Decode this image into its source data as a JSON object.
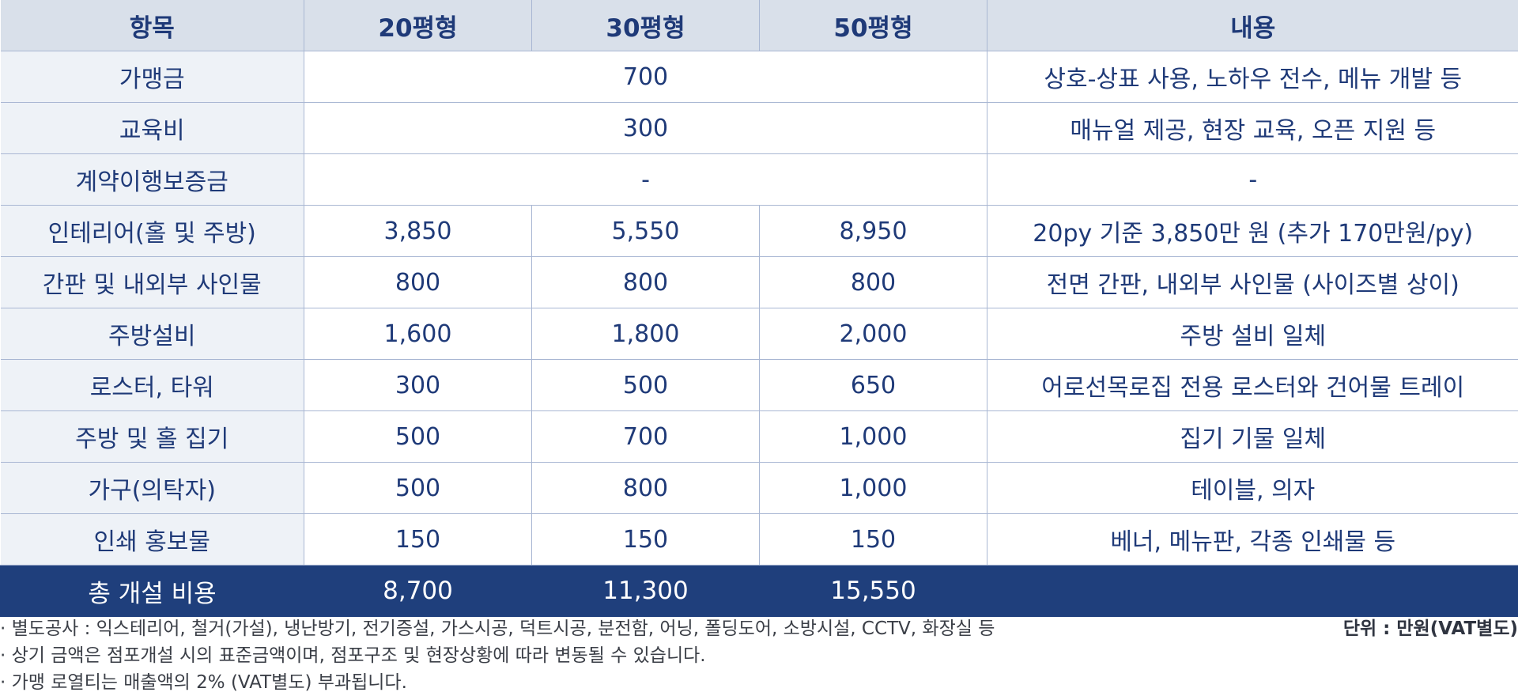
{
  "table": {
    "headers": [
      "항목",
      "20평형",
      "30평형",
      "50평형",
      "내용"
    ],
    "rows": [
      {
        "item": "가맹금",
        "merged": "700",
        "desc": "상호-상표 사용, 노하우 전수, 메뉴 개발 등"
      },
      {
        "item": "교육비",
        "merged": "300",
        "desc": "매뉴얼 제공, 현장 교육, 오픈 지원 등"
      },
      {
        "item": "계약이행보증금",
        "merged": "-",
        "desc": "-"
      },
      {
        "item": "인테리어(홀 및 주방)",
        "p20": "3,850",
        "p30": "5,550",
        "p50": "8,950",
        "desc": "20py 기준 3,850만 원 (추가 170만원/py)"
      },
      {
        "item": "간판 및 내외부 사인물",
        "p20": "800",
        "p30": "800",
        "p50": "800",
        "desc": "전면 간판, 내외부 사인물 (사이즈별 상이)"
      },
      {
        "item": "주방설비",
        "p20": "1,600",
        "p30": "1,800",
        "p50": "2,000",
        "desc": "주방 설비 일체"
      },
      {
        "item": "로스터, 타워",
        "p20": "300",
        "p30": "500",
        "p50": "650",
        "desc": "어로선목로집 전용 로스터와 건어물 트레이"
      },
      {
        "item": "주방 및 홀 집기",
        "p20": "500",
        "p30": "700",
        "p50": "1,000",
        "desc": "집기 기물 일체"
      },
      {
        "item": "가구(의탁자)",
        "p20": "500",
        "p30": "800",
        "p50": "1,000",
        "desc": "테이블, 의자"
      },
      {
        "item": "인쇄 홍보물",
        "p20": "150",
        "p30": "150",
        "p50": "150",
        "desc": "베너, 메뉴판, 각종 인쇄물 등"
      }
    ],
    "total": {
      "item": "총 개설 비용",
      "p20": "8,700",
      "p30": "11,300",
      "p50": "15,550",
      "desc": ""
    }
  },
  "notes": [
    "· 별도공사 : 익스테리어, 철거(가설), 냉난방기, 전기증설, 가스시공, 덕트시공, 분전함, 어닝, 폴딩도어, 소방시설, CCTV, 화장실 등",
    "· 상기 금액은 점포개설 시의 표준금액이며, 점포구조 및 현장상황에 따라 변동될 수 있습니다.",
    "· 가맹 로열티는 매출액의 2% (VAT별도) 부과됩니다."
  ],
  "unit_label": "단위 : 만원(VAT별도)",
  "colors": {
    "header_bg": "#d9e0ea",
    "item_bg": "#eef2f7",
    "total_bg": "#1f3f7c",
    "text": "#1f3a78"
  }
}
